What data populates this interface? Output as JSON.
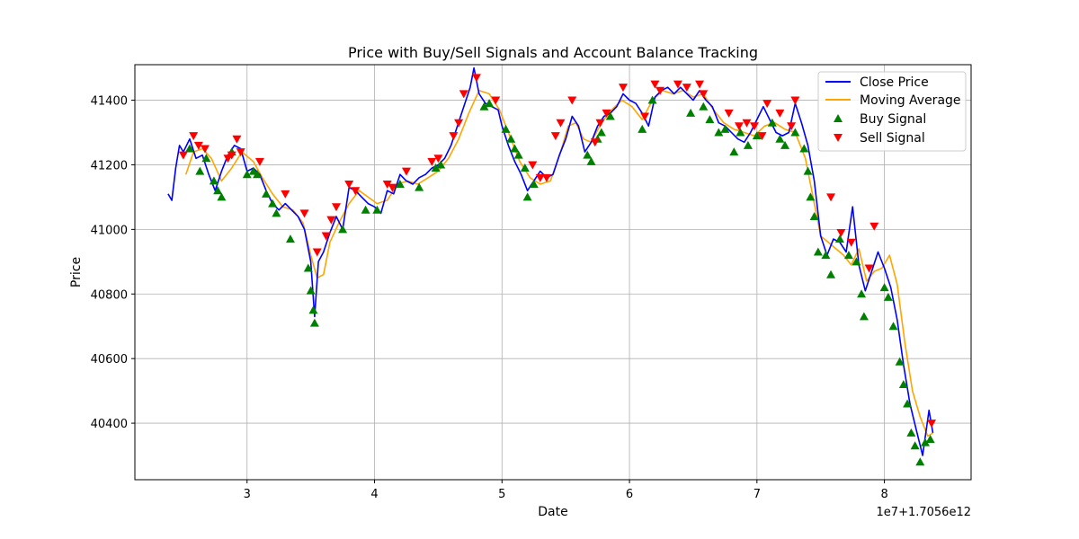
{
  "chart_data": {
    "type": "line",
    "title": "Price with Buy/Sell Signals and Account Balance Tracking",
    "xlabel": "Date",
    "ylabel": "Price",
    "x_offset_label": "1e7+1.7056e12",
    "xlim": [
      2.12,
      8.68
    ],
    "ylim": [
      40225,
      41510
    ],
    "x_ticks": [
      3,
      4,
      5,
      6,
      7,
      8
    ],
    "y_ticks": [
      40400,
      40600,
      40800,
      41000,
      41200,
      41400
    ],
    "grid": true,
    "legend_position": "top-right",
    "colors": {
      "close": "#0000ff",
      "ma": "#ffa500",
      "buy": "#008000",
      "sell": "#ff0000",
      "grid": "#b0b0b0"
    },
    "series": [
      {
        "name": "Close Price",
        "kind": "line",
        "x": [
          2.38,
          2.41,
          2.44,
          2.47,
          2.5,
          2.55,
          2.6,
          2.65,
          2.7,
          2.75,
          2.8,
          2.85,
          2.9,
          2.95,
          3.0,
          3.05,
          3.1,
          3.15,
          3.2,
          3.25,
          3.3,
          3.35,
          3.4,
          3.45,
          3.5,
          3.53,
          3.56,
          3.6,
          3.65,
          3.7,
          3.75,
          3.8,
          3.85,
          3.9,
          3.95,
          4.0,
          4.05,
          4.1,
          4.15,
          4.2,
          4.25,
          4.3,
          4.35,
          4.4,
          4.45,
          4.5,
          4.55,
          4.6,
          4.65,
          4.7,
          4.75,
          4.78,
          4.82,
          4.87,
          4.92,
          4.97,
          5.0,
          5.05,
          5.1,
          5.15,
          5.2,
          5.25,
          5.3,
          5.35,
          5.4,
          5.45,
          5.5,
          5.55,
          5.6,
          5.65,
          5.7,
          5.75,
          5.8,
          5.85,
          5.9,
          5.95,
          6.0,
          6.05,
          6.1,
          6.15,
          6.2,
          6.25,
          6.3,
          6.35,
          6.4,
          6.45,
          6.5,
          6.55,
          6.6,
          6.65,
          6.7,
          6.75,
          6.8,
          6.85,
          6.9,
          6.95,
          7.0,
          7.05,
          7.1,
          7.15,
          7.2,
          7.25,
          7.3,
          7.35,
          7.4,
          7.45,
          7.5,
          7.55,
          7.6,
          7.65,
          7.7,
          7.75,
          7.8,
          7.85,
          7.9,
          7.95,
          8.0,
          8.05,
          8.1,
          8.15,
          8.2,
          8.25,
          8.3,
          8.35,
          8.38
        ],
        "values": [
          41110,
          41090,
          41190,
          41260,
          41240,
          41280,
          41220,
          41230,
          41170,
          41120,
          41180,
          41230,
          41260,
          41250,
          41180,
          41190,
          41170,
          41120,
          41080,
          41060,
          41080,
          41060,
          41040,
          41000,
          40900,
          40730,
          40900,
          40930,
          40990,
          41040,
          41000,
          41130,
          41120,
          41100,
          41080,
          41070,
          41050,
          41120,
          41110,
          41170,
          41150,
          41140,
          41160,
          41170,
          41190,
          41200,
          41220,
          41260,
          41320,
          41380,
          41440,
          41500,
          41420,
          41390,
          41380,
          41370,
          41320,
          41260,
          41210,
          41170,
          41120,
          41150,
          41180,
          41160,
          41170,
          41230,
          41280,
          41350,
          41320,
          41240,
          41270,
          41320,
          41350,
          41360,
          41380,
          41420,
          41400,
          41390,
          41360,
          41320,
          41410,
          41430,
          41440,
          41420,
          41440,
          41420,
          41400,
          41430,
          41400,
          41380,
          41330,
          41320,
          41300,
          41280,
          41270,
          41300,
          41340,
          41380,
          41340,
          41300,
          41290,
          41300,
          41390,
          41330,
          41260,
          41150,
          40980,
          40920,
          40970,
          40960,
          40930,
          41070,
          40890,
          40810,
          40870,
          40930,
          40880,
          40820,
          40720,
          40580,
          40460,
          40380,
          40300,
          40440,
          40370
        ]
      },
      {
        "name": "Moving Average",
        "kind": "line",
        "x": [
          2.52,
          2.58,
          2.65,
          2.72,
          2.8,
          2.88,
          2.96,
          3.05,
          3.12,
          3.2,
          3.28,
          3.36,
          3.44,
          3.5,
          3.55,
          3.6,
          3.65,
          3.72,
          3.8,
          3.88,
          3.95,
          4.02,
          4.1,
          4.18,
          4.26,
          4.34,
          4.42,
          4.5,
          4.58,
          4.66,
          4.74,
          4.82,
          4.9,
          4.98,
          5.06,
          5.14,
          5.22,
          5.3,
          5.38,
          5.46,
          5.52,
          5.58,
          5.64,
          5.7,
          5.78,
          5.86,
          5.94,
          6.02,
          6.1,
          6.18,
          6.26,
          6.34,
          6.42,
          6.5,
          6.58,
          6.66,
          6.74,
          6.82,
          6.9,
          6.98,
          7.06,
          7.14,
          7.22,
          7.3,
          7.38,
          7.44,
          7.5,
          7.56,
          7.62,
          7.68,
          7.74,
          7.8,
          7.86,
          7.92,
          7.98,
          8.04,
          8.1,
          8.16,
          8.22,
          8.28,
          8.34,
          8.38
        ],
        "values": [
          41170,
          41240,
          41250,
          41220,
          41150,
          41190,
          41240,
          41210,
          41160,
          41110,
          41070,
          41060,
          41020,
          40920,
          40850,
          40860,
          40960,
          41020,
          41080,
          41120,
          41100,
          41080,
          41090,
          41140,
          41150,
          41140,
          41160,
          41180,
          41220,
          41280,
          41360,
          41430,
          41420,
          41370,
          41290,
          41210,
          41160,
          41140,
          41150,
          41240,
          41320,
          41330,
          41280,
          41270,
          41330,
          41370,
          41400,
          41380,
          41340,
          41400,
          41430,
          41420,
          41430,
          41410,
          41420,
          41370,
          41330,
          41310,
          41300,
          41290,
          41320,
          41330,
          41310,
          41300,
          41220,
          41100,
          40980,
          40960,
          40940,
          40920,
          40890,
          40940,
          40840,
          40870,
          40880,
          40920,
          40830,
          40650,
          40500,
          40420,
          40360,
          40370
        ]
      },
      {
        "name": "Buy Signal",
        "kind": "scatter",
        "x": [
          2.55,
          2.63,
          2.68,
          2.74,
          2.77,
          2.8,
          2.88,
          3.0,
          3.05,
          3.08,
          3.15,
          3.2,
          3.23,
          3.34,
          3.48,
          3.5,
          3.52,
          3.53,
          3.75,
          3.93,
          4.02,
          4.2,
          4.35,
          4.48,
          4.52,
          4.86,
          4.9,
          5.03,
          5.07,
          5.1,
          5.13,
          5.18,
          5.2,
          5.25,
          5.67,
          5.7,
          5.75,
          5.78,
          5.85,
          6.1,
          6.18,
          6.48,
          6.58,
          6.63,
          6.7,
          6.75,
          6.82,
          6.87,
          6.93,
          7.0,
          7.12,
          7.18,
          7.22,
          7.3,
          7.37,
          7.4,
          7.42,
          7.45,
          7.48,
          7.54,
          7.58,
          7.65,
          7.72,
          7.78,
          7.82,
          7.84,
          8.0,
          8.03,
          8.07,
          8.12,
          8.15,
          8.18,
          8.21,
          8.24,
          8.28,
          8.32,
          8.36
        ],
        "values": [
          41250,
          41180,
          41220,
          41150,
          41120,
          41100,
          41240,
          41170,
          41180,
          41170,
          41110,
          41080,
          41050,
          40970,
          40880,
          40810,
          40750,
          40710,
          41000,
          41060,
          41060,
          41140,
          41130,
          41190,
          41200,
          41380,
          41390,
          41310,
          41280,
          41250,
          41230,
          41190,
          41100,
          41140,
          41230,
          41210,
          41280,
          41300,
          41350,
          41310,
          41400,
          41360,
          41380,
          41340,
          41300,
          41310,
          41240,
          41300,
          41260,
          41290,
          41330,
          41280,
          41260,
          41300,
          41250,
          41180,
          41100,
          41040,
          40930,
          40920,
          40860,
          40970,
          40920,
          40900,
          40800,
          40730,
          40820,
          40790,
          40700,
          40590,
          40520,
          40460,
          40370,
          40330,
          40280,
          40340,
          40350
        ]
      },
      {
        "name": "Sell Signal",
        "kind": "scatter",
        "x": [
          2.5,
          2.58,
          2.62,
          2.67,
          2.85,
          2.88,
          2.92,
          2.95,
          3.1,
          3.3,
          3.45,
          3.55,
          3.62,
          3.66,
          3.7,
          3.8,
          3.85,
          4.1,
          4.14,
          4.25,
          4.45,
          4.5,
          4.62,
          4.66,
          4.7,
          4.8,
          4.95,
          5.24,
          5.3,
          5.35,
          5.42,
          5.46,
          5.55,
          5.73,
          5.77,
          5.82,
          5.95,
          6.12,
          6.2,
          6.24,
          6.38,
          6.45,
          6.55,
          6.58,
          6.78,
          6.86,
          6.92,
          6.98,
          7.04,
          7.08,
          7.18,
          7.27,
          7.3,
          7.58,
          7.66,
          7.74,
          7.88,
          7.92,
          8.37
        ],
        "values": [
          41230,
          41290,
          41260,
          41250,
          41220,
          41230,
          41280,
          41240,
          41210,
          41110,
          41050,
          40930,
          40980,
          41030,
          41070,
          41140,
          41120,
          41140,
          41130,
          41180,
          41210,
          41220,
          41290,
          41330,
          41420,
          41470,
          41400,
          41200,
          41160,
          41160,
          41290,
          41330,
          41400,
          41270,
          41330,
          41360,
          41440,
          41350,
          41450,
          41430,
          41450,
          41440,
          41450,
          41420,
          41360,
          41320,
          41330,
          41320,
          41290,
          41390,
          41360,
          41320,
          41400,
          41100,
          40990,
          40960,
          40880,
          41010,
          40400
        ]
      }
    ]
  }
}
